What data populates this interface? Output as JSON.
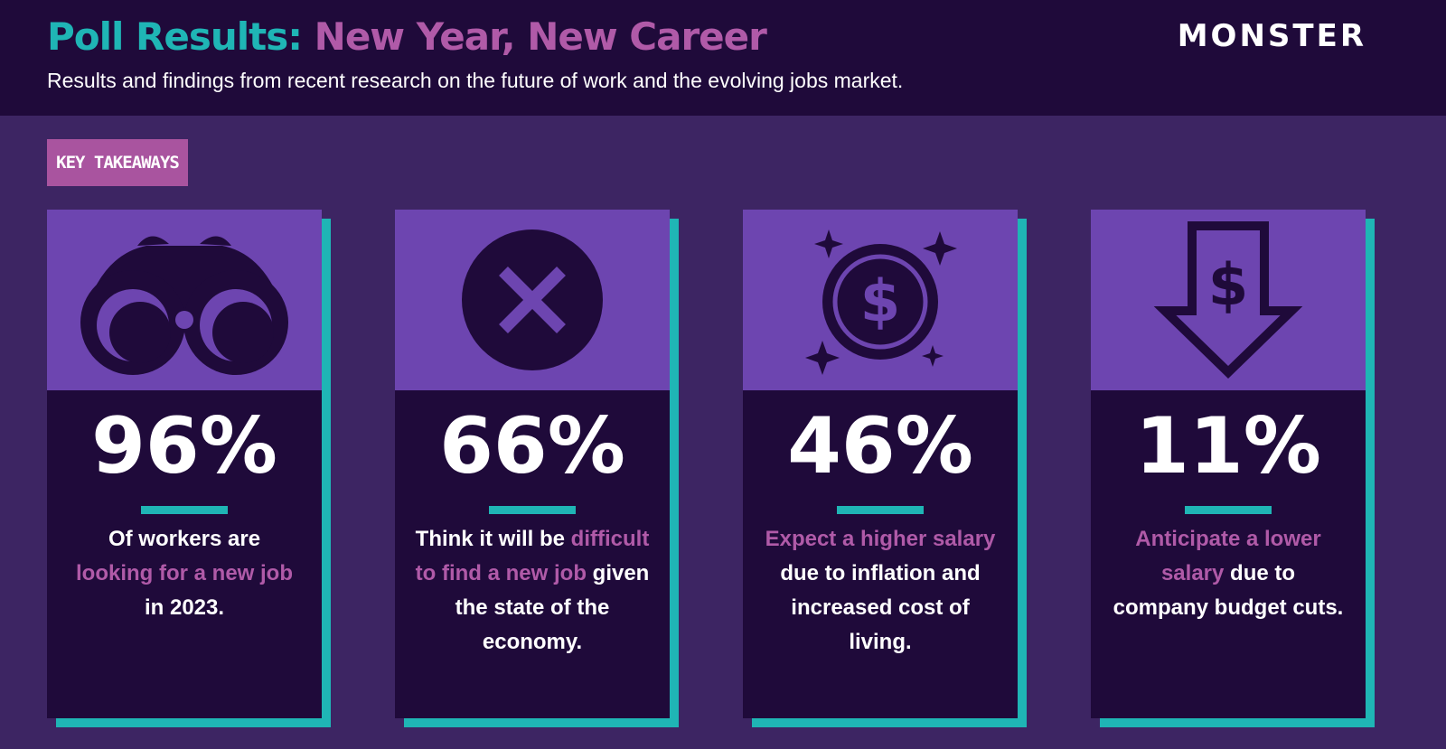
{
  "header": {
    "title_part1": "Poll Results:",
    "title_part2": "New Year, New Career",
    "subtitle": "Results and findings from recent research on the future of work and the evolving jobs market.",
    "logo": "MONSTER"
  },
  "badge": "KEY TAKEAWAYS",
  "cards": [
    {
      "stat": "96%",
      "description": [
        {
          "text": "Of workers are",
          "highlight": false
        },
        {
          "text": "looking for a new job",
          "highlight": true
        },
        {
          "text": "in 2023.",
          "highlight": false
        }
      ]
    },
    {
      "stat": "66%",
      "description": [
        {
          "text": "Think it will be",
          "highlight": false
        },
        {
          "text": "difficult to find a new job",
          "highlight": true
        },
        {
          "text": "given the state of the economy.",
          "highlight": false
        }
      ]
    },
    {
      "stat": "46%",
      "description": [
        {
          "text": "Expect a higher salary",
          "highlight": true
        },
        {
          "text": "due to inflation and increased cost of living.",
          "highlight": false
        }
      ]
    },
    {
      "stat": "11%",
      "description": [
        {
          "text": "Anticipate a lower salary",
          "highlight": true
        },
        {
          "text": "due to company budget cuts.",
          "highlight": false
        }
      ]
    }
  ]
}
